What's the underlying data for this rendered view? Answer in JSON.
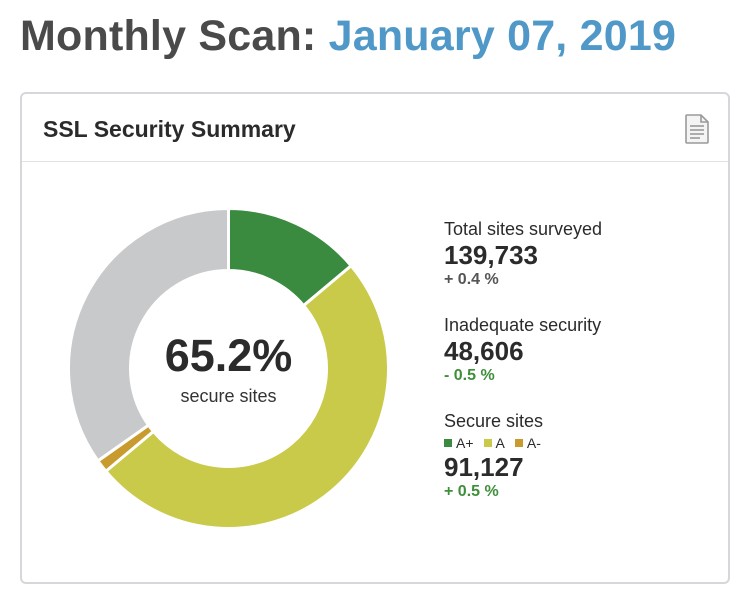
{
  "header": {
    "title_prefix": "Monthly Scan:",
    "title_date": "January 07, 2019"
  },
  "card": {
    "title": "SSL Security Summary",
    "icon": "document-icon"
  },
  "colors": {
    "a_plus": "#3a8a3f",
    "a": "#c9c94a",
    "a_minus": "#c99a2e",
    "inadequate": "#c8c9cb",
    "title_date": "#4f98c8"
  },
  "chart_data": {
    "type": "pie",
    "donut": true,
    "center_value": "65.2%",
    "center_label": "secure sites",
    "slices": [
      {
        "name": "A+",
        "value": 13.9
      },
      {
        "name": "A",
        "value": 50.0
      },
      {
        "name": "A-",
        "value": 1.3
      },
      {
        "name": "Inadequate security",
        "value": 34.8
      }
    ]
  },
  "stats": {
    "total": {
      "label": "Total sites surveyed",
      "value": "139,733",
      "change": "+ 0.4 %"
    },
    "inadequate": {
      "label": "Inadequate security",
      "value": "48,606",
      "change": "- 0.5 %"
    },
    "secure": {
      "label": "Secure sites",
      "legend": [
        "A+",
        "A",
        "A-"
      ],
      "value": "91,127",
      "change": "+ 0.5 %"
    }
  }
}
